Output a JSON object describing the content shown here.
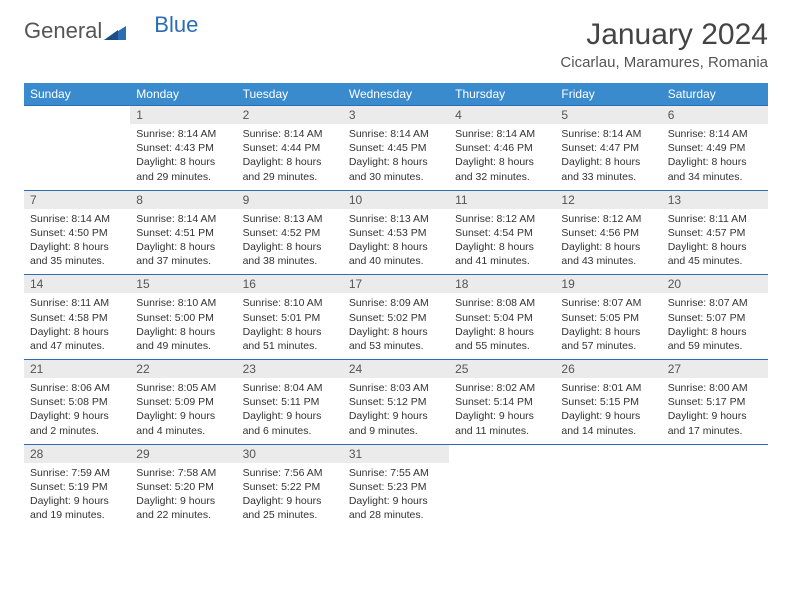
{
  "brand": {
    "part1": "General",
    "part2": "Blue"
  },
  "title": "January 2024",
  "location": "Cicarlau, Maramures, Romania",
  "colors": {
    "header_bg": "#3a8bce",
    "accent": "#2a6db5",
    "daynum_bg": "#ebebeb",
    "text": "#333333"
  },
  "day_names": [
    "Sunday",
    "Monday",
    "Tuesday",
    "Wednesday",
    "Thursday",
    "Friday",
    "Saturday"
  ],
  "weeks": [
    {
      "nums": [
        "",
        "1",
        "2",
        "3",
        "4",
        "5",
        "6"
      ],
      "cells": [
        null,
        {
          "sunrise": "Sunrise: 8:14 AM",
          "sunset": "Sunset: 4:43 PM",
          "dl1": "Daylight: 8 hours",
          "dl2": "and 29 minutes."
        },
        {
          "sunrise": "Sunrise: 8:14 AM",
          "sunset": "Sunset: 4:44 PM",
          "dl1": "Daylight: 8 hours",
          "dl2": "and 29 minutes."
        },
        {
          "sunrise": "Sunrise: 8:14 AM",
          "sunset": "Sunset: 4:45 PM",
          "dl1": "Daylight: 8 hours",
          "dl2": "and 30 minutes."
        },
        {
          "sunrise": "Sunrise: 8:14 AM",
          "sunset": "Sunset: 4:46 PM",
          "dl1": "Daylight: 8 hours",
          "dl2": "and 32 minutes."
        },
        {
          "sunrise": "Sunrise: 8:14 AM",
          "sunset": "Sunset: 4:47 PM",
          "dl1": "Daylight: 8 hours",
          "dl2": "and 33 minutes."
        },
        {
          "sunrise": "Sunrise: 8:14 AM",
          "sunset": "Sunset: 4:49 PM",
          "dl1": "Daylight: 8 hours",
          "dl2": "and 34 minutes."
        }
      ]
    },
    {
      "nums": [
        "7",
        "8",
        "9",
        "10",
        "11",
        "12",
        "13"
      ],
      "cells": [
        {
          "sunrise": "Sunrise: 8:14 AM",
          "sunset": "Sunset: 4:50 PM",
          "dl1": "Daylight: 8 hours",
          "dl2": "and 35 minutes."
        },
        {
          "sunrise": "Sunrise: 8:14 AM",
          "sunset": "Sunset: 4:51 PM",
          "dl1": "Daylight: 8 hours",
          "dl2": "and 37 minutes."
        },
        {
          "sunrise": "Sunrise: 8:13 AM",
          "sunset": "Sunset: 4:52 PM",
          "dl1": "Daylight: 8 hours",
          "dl2": "and 38 minutes."
        },
        {
          "sunrise": "Sunrise: 8:13 AM",
          "sunset": "Sunset: 4:53 PM",
          "dl1": "Daylight: 8 hours",
          "dl2": "and 40 minutes."
        },
        {
          "sunrise": "Sunrise: 8:12 AM",
          "sunset": "Sunset: 4:54 PM",
          "dl1": "Daylight: 8 hours",
          "dl2": "and 41 minutes."
        },
        {
          "sunrise": "Sunrise: 8:12 AM",
          "sunset": "Sunset: 4:56 PM",
          "dl1": "Daylight: 8 hours",
          "dl2": "and 43 minutes."
        },
        {
          "sunrise": "Sunrise: 8:11 AM",
          "sunset": "Sunset: 4:57 PM",
          "dl1": "Daylight: 8 hours",
          "dl2": "and 45 minutes."
        }
      ]
    },
    {
      "nums": [
        "14",
        "15",
        "16",
        "17",
        "18",
        "19",
        "20"
      ],
      "cells": [
        {
          "sunrise": "Sunrise: 8:11 AM",
          "sunset": "Sunset: 4:58 PM",
          "dl1": "Daylight: 8 hours",
          "dl2": "and 47 minutes."
        },
        {
          "sunrise": "Sunrise: 8:10 AM",
          "sunset": "Sunset: 5:00 PM",
          "dl1": "Daylight: 8 hours",
          "dl2": "and 49 minutes."
        },
        {
          "sunrise": "Sunrise: 8:10 AM",
          "sunset": "Sunset: 5:01 PM",
          "dl1": "Daylight: 8 hours",
          "dl2": "and 51 minutes."
        },
        {
          "sunrise": "Sunrise: 8:09 AM",
          "sunset": "Sunset: 5:02 PM",
          "dl1": "Daylight: 8 hours",
          "dl2": "and 53 minutes."
        },
        {
          "sunrise": "Sunrise: 8:08 AM",
          "sunset": "Sunset: 5:04 PM",
          "dl1": "Daylight: 8 hours",
          "dl2": "and 55 minutes."
        },
        {
          "sunrise": "Sunrise: 8:07 AM",
          "sunset": "Sunset: 5:05 PM",
          "dl1": "Daylight: 8 hours",
          "dl2": "and 57 minutes."
        },
        {
          "sunrise": "Sunrise: 8:07 AM",
          "sunset": "Sunset: 5:07 PM",
          "dl1": "Daylight: 8 hours",
          "dl2": "and 59 minutes."
        }
      ]
    },
    {
      "nums": [
        "21",
        "22",
        "23",
        "24",
        "25",
        "26",
        "27"
      ],
      "cells": [
        {
          "sunrise": "Sunrise: 8:06 AM",
          "sunset": "Sunset: 5:08 PM",
          "dl1": "Daylight: 9 hours",
          "dl2": "and 2 minutes."
        },
        {
          "sunrise": "Sunrise: 8:05 AM",
          "sunset": "Sunset: 5:09 PM",
          "dl1": "Daylight: 9 hours",
          "dl2": "and 4 minutes."
        },
        {
          "sunrise": "Sunrise: 8:04 AM",
          "sunset": "Sunset: 5:11 PM",
          "dl1": "Daylight: 9 hours",
          "dl2": "and 6 minutes."
        },
        {
          "sunrise": "Sunrise: 8:03 AM",
          "sunset": "Sunset: 5:12 PM",
          "dl1": "Daylight: 9 hours",
          "dl2": "and 9 minutes."
        },
        {
          "sunrise": "Sunrise: 8:02 AM",
          "sunset": "Sunset: 5:14 PM",
          "dl1": "Daylight: 9 hours",
          "dl2": "and 11 minutes."
        },
        {
          "sunrise": "Sunrise: 8:01 AM",
          "sunset": "Sunset: 5:15 PM",
          "dl1": "Daylight: 9 hours",
          "dl2": "and 14 minutes."
        },
        {
          "sunrise": "Sunrise: 8:00 AM",
          "sunset": "Sunset: 5:17 PM",
          "dl1": "Daylight: 9 hours",
          "dl2": "and 17 minutes."
        }
      ]
    },
    {
      "nums": [
        "28",
        "29",
        "30",
        "31",
        "",
        "",
        ""
      ],
      "cells": [
        {
          "sunrise": "Sunrise: 7:59 AM",
          "sunset": "Sunset: 5:19 PM",
          "dl1": "Daylight: 9 hours",
          "dl2": "and 19 minutes."
        },
        {
          "sunrise": "Sunrise: 7:58 AM",
          "sunset": "Sunset: 5:20 PM",
          "dl1": "Daylight: 9 hours",
          "dl2": "and 22 minutes."
        },
        {
          "sunrise": "Sunrise: 7:56 AM",
          "sunset": "Sunset: 5:22 PM",
          "dl1": "Daylight: 9 hours",
          "dl2": "and 25 minutes."
        },
        {
          "sunrise": "Sunrise: 7:55 AM",
          "sunset": "Sunset: 5:23 PM",
          "dl1": "Daylight: 9 hours",
          "dl2": "and 28 minutes."
        },
        null,
        null,
        null
      ]
    }
  ]
}
